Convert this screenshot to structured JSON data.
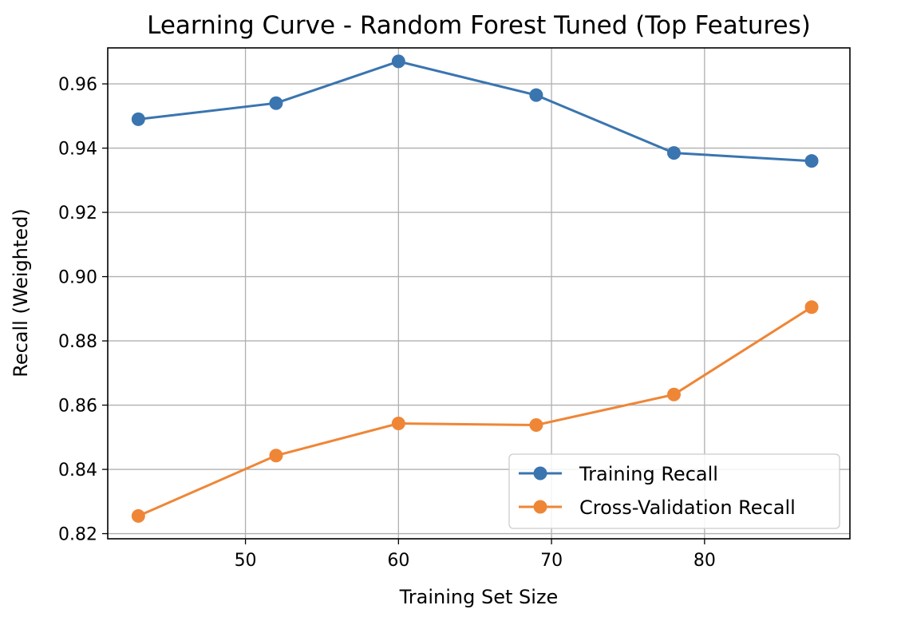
{
  "chart_data": {
    "type": "line",
    "title": "Learning Curve - Random Forest Tuned (Top Features)",
    "xlabel": "Training Set Size",
    "ylabel": "Recall (Weighted)",
    "xlim": [
      41,
      89.5
    ],
    "ylim": [
      0.8184,
      0.9712
    ],
    "xticks": [
      50,
      60,
      70,
      80
    ],
    "yticks": [
      0.82,
      0.84,
      0.86,
      0.88,
      0.9,
      0.92,
      0.94,
      0.96
    ],
    "ytick_labels": [
      "0.82",
      "0.84",
      "0.86",
      "0.88",
      "0.90",
      "0.92",
      "0.94",
      "0.96"
    ],
    "grid": true,
    "legend_position": "lower-right",
    "x": [
      43,
      52,
      60,
      69,
      78,
      87
    ],
    "series": [
      {
        "name": "Training Recall",
        "color": "#3a75b0",
        "marker": "circle",
        "values": [
          0.949,
          0.954,
          0.967,
          0.9565,
          0.9385,
          0.936
        ]
      },
      {
        "name": "Cross-Validation Recall",
        "color": "#ef8636",
        "marker": "circle",
        "values": [
          0.8255,
          0.8443,
          0.8543,
          0.8538,
          0.8633,
          0.8905
        ]
      }
    ]
  }
}
